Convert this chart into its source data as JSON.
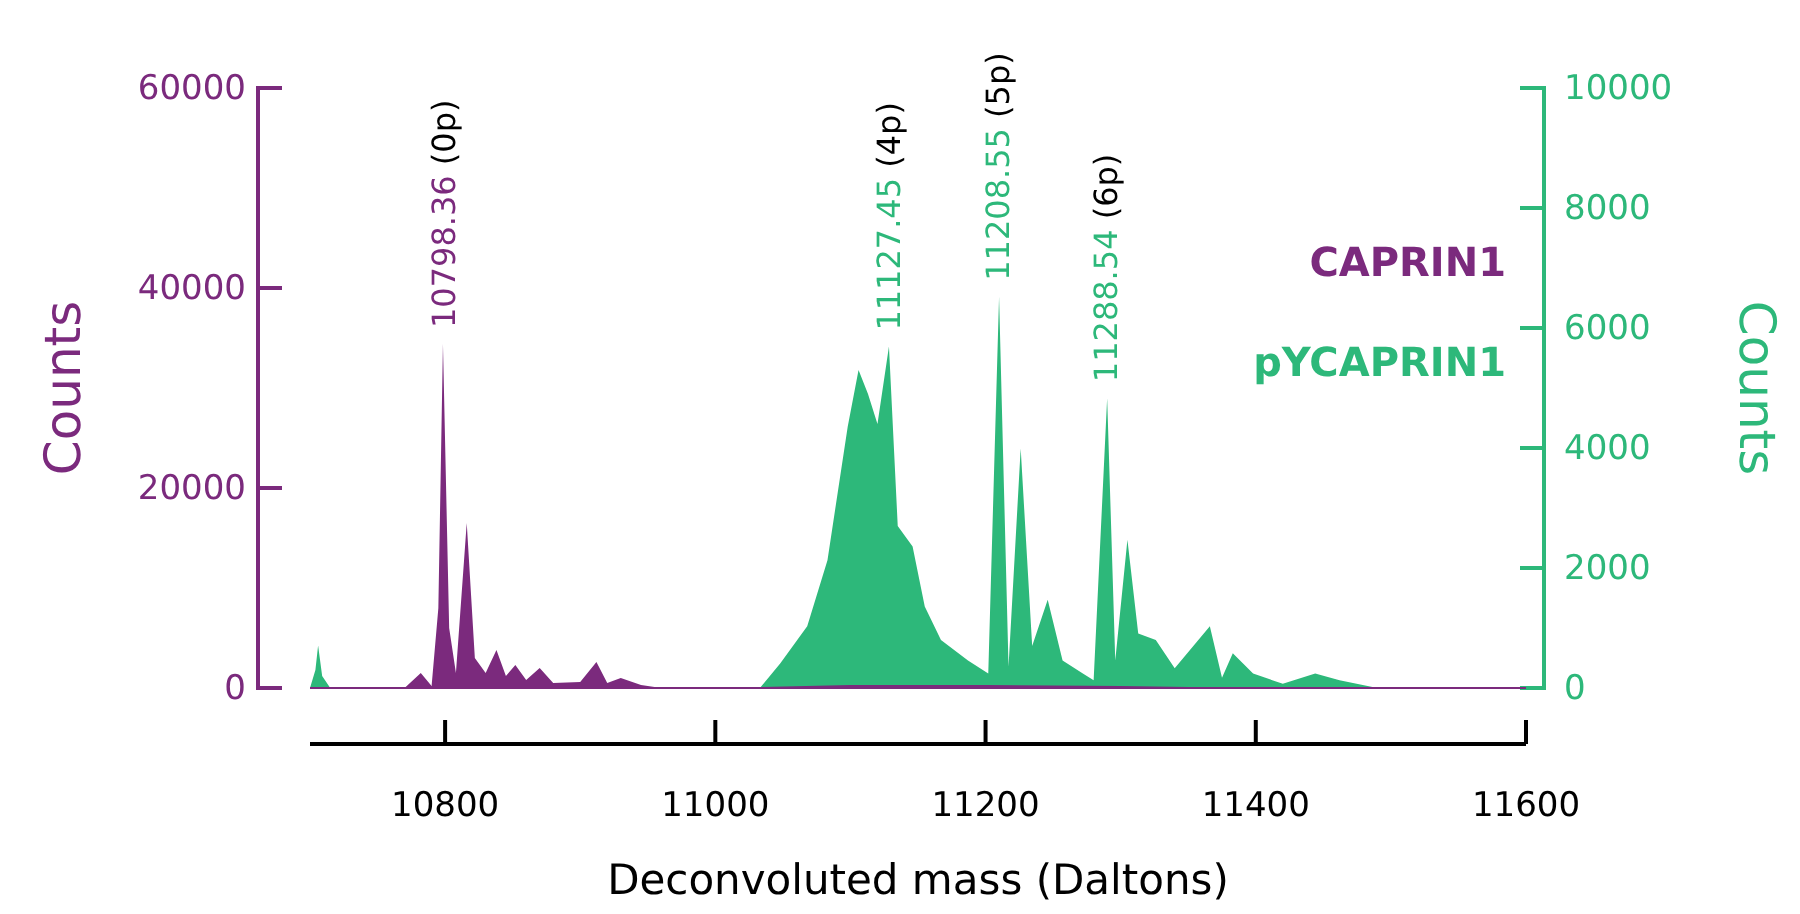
{
  "chart_data": {
    "type": "area",
    "xlabel": "Deconvoluted mass (Daltons)",
    "ylabel": "Counts",
    "y2label": "Counts",
    "xlim": [
      10700,
      11600
    ],
    "xticks": [
      10800,
      11000,
      11200,
      11400,
      11600
    ],
    "ylim": [
      0,
      60000
    ],
    "yticks": [
      0,
      20000,
      40000,
      60000
    ],
    "y2lim": [
      0,
      10000
    ],
    "y2ticks": [
      0,
      2000,
      4000,
      6000,
      8000,
      10000
    ],
    "legend": "right",
    "series": [
      {
        "name": "CAPRIN1",
        "color": "#7b2a7d",
        "x": [
          10700,
          10770,
          10782,
          10790,
          10795,
          10798.4,
          10803,
          10808,
          10816,
          10822,
          10830,
          10838,
          10845,
          10852,
          10860,
          10870,
          10880,
          10900,
          10912,
          10920,
          10930,
          10945,
          10960,
          11000,
          11100,
          11200,
          11300,
          11400,
          11600
        ],
        "values": [
          0,
          0,
          1500,
          200,
          8000,
          34400,
          6000,
          1500,
          16500,
          3000,
          1500,
          3800,
          1200,
          2300,
          800,
          2000,
          500,
          600,
          2600,
          500,
          1000,
          300,
          0,
          0,
          300,
          300,
          200,
          0,
          0
        ]
      },
      {
        "name": "pYCAPRIN1",
        "axis": "y2",
        "color": "#2db87a",
        "x": [
          10700,
          10704,
          10706,
          10709,
          10715,
          10800,
          11000,
          11033,
          11048,
          11068,
          11083,
          11098,
          11106,
          11113,
          11120,
          11128.5,
          11135,
          11146,
          11155,
          11167,
          11187,
          11202,
          11210,
          11217,
          11226,
          11234.5,
          11246,
          11257,
          11272,
          11280,
          11290,
          11296,
          11305,
          11313,
          11326,
          11340,
          11366,
          11375,
          11383,
          11398,
          11420,
          11444,
          11462,
          11490,
          11600
        ],
        "values": [
          0,
          300,
          710,
          200,
          0,
          0,
          0,
          0,
          410,
          1030,
          2130,
          4360,
          5300,
          4900,
          4400,
          5690,
          2700,
          2360,
          1360,
          800,
          460,
          240,
          6520,
          360,
          3990,
          700,
          1470,
          460,
          240,
          130,
          4830,
          460,
          2470,
          910,
          800,
          330,
          1030,
          170,
          580,
          240,
          70,
          240,
          130,
          0,
          0
        ]
      }
    ],
    "annotations": [
      {
        "text": "10798.36 (0p)",
        "x": 10798.36,
        "y": 34400
      },
      {
        "text": "11127.45 (4p)",
        "x": 11127.45,
        "y": 34140
      },
      {
        "text": "11208.55 (5p)",
        "x": 11208.55,
        "y": 39120
      },
      {
        "text": "11288.54 (6p)",
        "x": 11288.54,
        "y": 28980
      }
    ]
  }
}
